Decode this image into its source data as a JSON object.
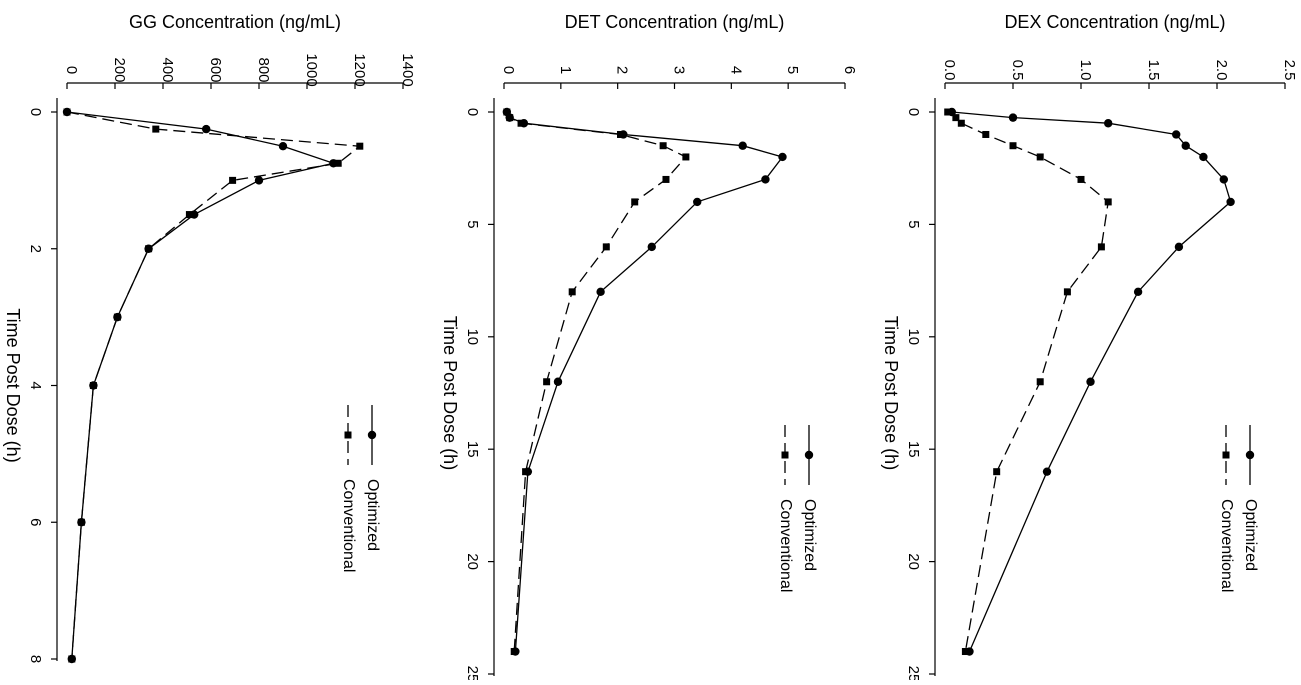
{
  "chart_data": [
    {
      "type": "line",
      "title": "GG Concentration (ng/mL)",
      "xlabel": "Time Post Dose (h)",
      "ylabel": "GG Concentration (ng/mL)",
      "xlim": [
        0,
        8
      ],
      "ylim": [
        0,
        1400
      ],
      "xticks": [
        0,
        2,
        4,
        6,
        8
      ],
      "yticks": [
        0,
        200,
        400,
        600,
        800,
        1000,
        1200,
        1400
      ],
      "legend_position": "right",
      "series": [
        {
          "name": "Optimized",
          "marker": "circle",
          "dash": "solid",
          "x": [
            0,
            0.25,
            0.5,
            0.75,
            1,
            1.5,
            2,
            3,
            4,
            6,
            8
          ],
          "y": [
            0,
            580,
            900,
            1110,
            800,
            530,
            340,
            210,
            110,
            60,
            20
          ]
        },
        {
          "name": "Conventional",
          "marker": "square",
          "dash": "dashed",
          "x": [
            0,
            0.25,
            0.5,
            0.75,
            1,
            1.5,
            2,
            3,
            4,
            6,
            8
          ],
          "y": [
            0,
            370,
            1220,
            1130,
            690,
            510,
            340,
            210,
            110,
            60,
            20
          ]
        }
      ]
    },
    {
      "type": "line",
      "title": "DET Concentration (ng/mL)",
      "xlabel": "Time Post Dose (h)",
      "ylabel": "DET Concentration (ng/mL)",
      "xlim": [
        0,
        25
      ],
      "ylim": [
        0,
        6
      ],
      "xticks": [
        0,
        5,
        10,
        15,
        20,
        25
      ],
      "yticks": [
        0,
        1,
        2,
        3,
        4,
        5,
        6
      ],
      "legend_position": "right",
      "series": [
        {
          "name": "Optimized",
          "marker": "circle",
          "dash": "solid",
          "x": [
            0,
            0.25,
            0.5,
            1,
            1.5,
            2,
            3,
            4,
            6,
            8,
            12,
            16,
            24
          ],
          "y": [
            0.05,
            0.1,
            0.35,
            2.1,
            4.2,
            4.9,
            4.6,
            3.4,
            2.6,
            1.7,
            0.95,
            0.42,
            0.2
          ]
        },
        {
          "name": "Conventional",
          "marker": "square",
          "dash": "dashed",
          "x": [
            0,
            0.25,
            0.5,
            1,
            1.5,
            2,
            3,
            4,
            6,
            8,
            12,
            16,
            24
          ],
          "y": [
            0.05,
            0.1,
            0.3,
            2.05,
            2.8,
            3.2,
            2.85,
            2.3,
            1.8,
            1.2,
            0.75,
            0.38,
            0.18
          ]
        }
      ]
    },
    {
      "type": "line",
      "title": "DEX Concentration (ng/mL)",
      "xlabel": "Time Post Dose (h)",
      "ylabel": "DEX Concentration (ng/mL)",
      "xlim": [
        0,
        25
      ],
      "ylim": [
        0,
        2.5
      ],
      "xticks": [
        0,
        5,
        10,
        15,
        20,
        25
      ],
      "yticks": [
        0.0,
        0.5,
        1.0,
        1.5,
        2.0,
        2.5
      ],
      "ytick_labels": [
        "0.0",
        "0.5",
        "1.0",
        "1.5",
        "2.0",
        "2.5"
      ],
      "legend_position": "right",
      "series": [
        {
          "name": "Optimized",
          "marker": "circle",
          "dash": "solid",
          "x": [
            0,
            0.25,
            0.5,
            1,
            1.5,
            2,
            3,
            4,
            6,
            8,
            12,
            16,
            24
          ],
          "y": [
            0.05,
            0.5,
            1.2,
            1.7,
            1.77,
            1.9,
            2.05,
            2.1,
            1.72,
            1.42,
            1.07,
            0.75,
            0.18
          ]
        },
        {
          "name": "Conventional",
          "marker": "square",
          "dash": "dashed",
          "x": [
            0,
            0.25,
            0.5,
            1,
            1.5,
            2,
            3,
            4,
            6,
            8,
            12,
            16,
            24
          ],
          "y": [
            0.02,
            0.08,
            0.12,
            0.3,
            0.5,
            0.7,
            1.0,
            1.2,
            1.15,
            0.9,
            0.7,
            0.38,
            0.15
          ]
        }
      ]
    }
  ]
}
